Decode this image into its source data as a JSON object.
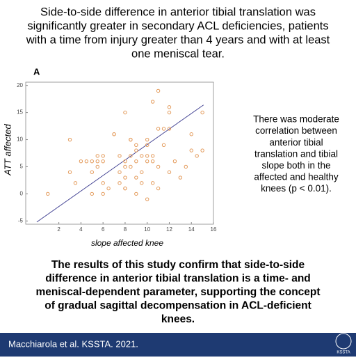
{
  "header": {
    "lines": [
      "Side-to-side difference in anterior tibial translation was",
      "significantly greater in secondary ACL deficiencies, patients",
      "with a time from injury greater than 4 years and with at least",
      "one meniscal tear."
    ]
  },
  "chart_data": {
    "type": "scatter",
    "panel_label": "A",
    "ylabel": "ATT affected",
    "xlabel": "slope affected knee",
    "color": "#e39a5a",
    "x": [
      1,
      3,
      3,
      3.5,
      4,
      4.5,
      5,
      5,
      5,
      5.5,
      5.5,
      5.5,
      6,
      6,
      6,
      6,
      6.5,
      7,
      7,
      7.5,
      7.5,
      7.5,
      8,
      8,
      8,
      8,
      8,
      8,
      8.5,
      8.5,
      8.5,
      8.5,
      9,
      9,
      9,
      9,
      9,
      9.5,
      9.5,
      9.5,
      10,
      10,
      10,
      10,
      10,
      10.5,
      10.5,
      10.5,
      10.5,
      11,
      11,
      11,
      11,
      11.5,
      11.5,
      12,
      12,
      12,
      12,
      12.5,
      13,
      13.5,
      14,
      14,
      14.5,
      15,
      15
    ],
    "y": [
      0,
      10,
      4,
      2,
      6,
      6,
      4,
      6,
      0,
      5,
      7,
      6,
      0,
      7,
      2,
      6,
      1,
      11,
      11,
      4,
      2,
      7,
      1,
      15,
      6,
      5,
      3,
      1,
      10,
      10,
      7,
      5,
      8,
      9,
      6,
      3,
      0,
      7,
      4,
      2,
      9,
      7,
      6,
      10,
      -1,
      17,
      7,
      6,
      2,
      19,
      12,
      5,
      1,
      12,
      9,
      16,
      15,
      12,
      4,
      6,
      3,
      5,
      8,
      11,
      7,
      15,
      8
    ],
    "fit": {
      "x": [
        0,
        15.1
      ],
      "y": [
        -5.2,
        16.4
      ],
      "color": "#3b3b8f"
    },
    "xlim": [
      -1,
      16
    ],
    "xticks": [
      2,
      4,
      6,
      8,
      10,
      12,
      14,
      16
    ],
    "ylim": [
      -5.6,
      20.6
    ],
    "yticks": [
      -5,
      0,
      5,
      10,
      15,
      20
    ]
  },
  "side_note": {
    "lines": [
      "There was moderate",
      "correlation between",
      "anterior tibial",
      "translation and tibial",
      "slope both in the",
      "affected and healthy",
      "knees (p < 0.01)."
    ]
  },
  "conclusion": {
    "lines": [
      "The results of this study confirm that side-to-side",
      "difference in anterior tibial translation is a time- and",
      "meniscal-dependent parameter, supporting the concept",
      "of gradual sagittal decompensation in ACL-deficient",
      "knees."
    ]
  },
  "footer": {
    "citation": "Macchiarola et al. KSSTA. 2021.",
    "logo": "KSSTA"
  }
}
